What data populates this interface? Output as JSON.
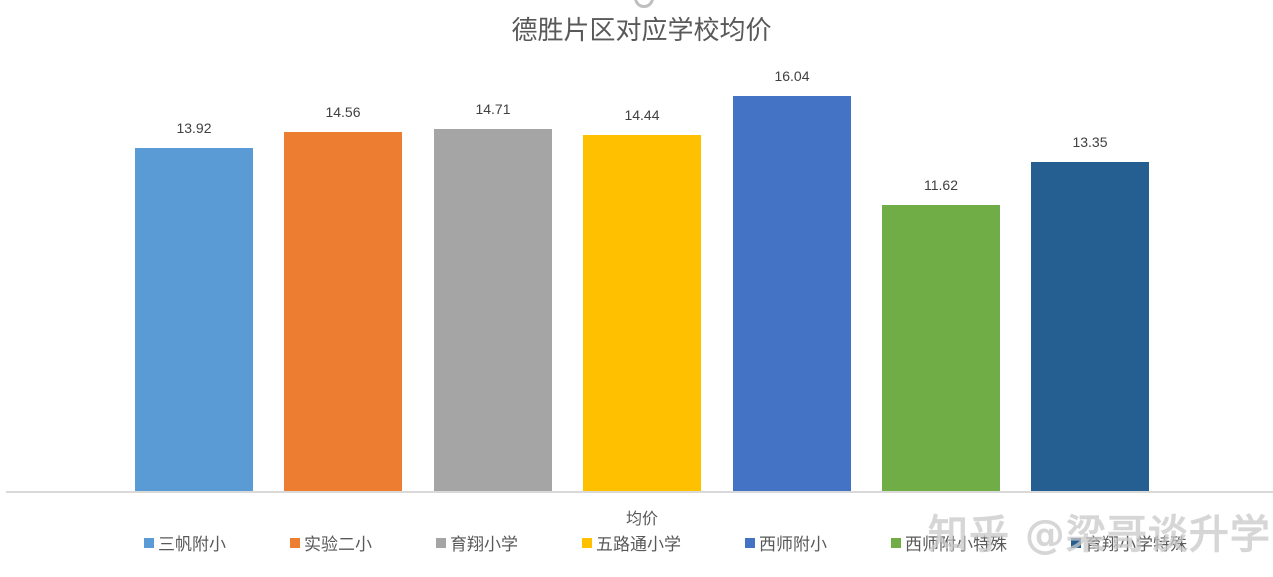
{
  "chart_data": {
    "type": "bar",
    "title": "德胜片区对应学校均价",
    "xlabel": "均价",
    "ylabel": "",
    "categories": [
      "三帆附小",
      "实验二小",
      "育翔小学",
      "五路通小学",
      "西师附小",
      "西师附小特殊",
      "育翔小学特殊"
    ],
    "values": [
      13.92,
      14.56,
      14.71,
      14.44,
      16.04,
      11.62,
      13.35
    ],
    "colors": [
      "#5b9bd5",
      "#ed7d31",
      "#a5a5a5",
      "#ffc000",
      "#4472c4",
      "#70ad47",
      "#255e91"
    ],
    "ylim": [
      0,
      16.04
    ],
    "grid": false,
    "legend_position": "bottom",
    "data_labels": true
  },
  "labels": {
    "title": "德胜片区对应学校均价",
    "xlabel": "均价",
    "values": [
      "13.92",
      "14.56",
      "14.71",
      "14.44",
      "16.04",
      "11.62",
      "13.35"
    ],
    "legend": [
      "三帆附小",
      "实验二小",
      "育翔小学",
      "五路通小学",
      "西师附小",
      "西师附小特殊",
      "育翔小学特殊"
    ]
  },
  "watermark": "知乎 @梁哥谈升学"
}
